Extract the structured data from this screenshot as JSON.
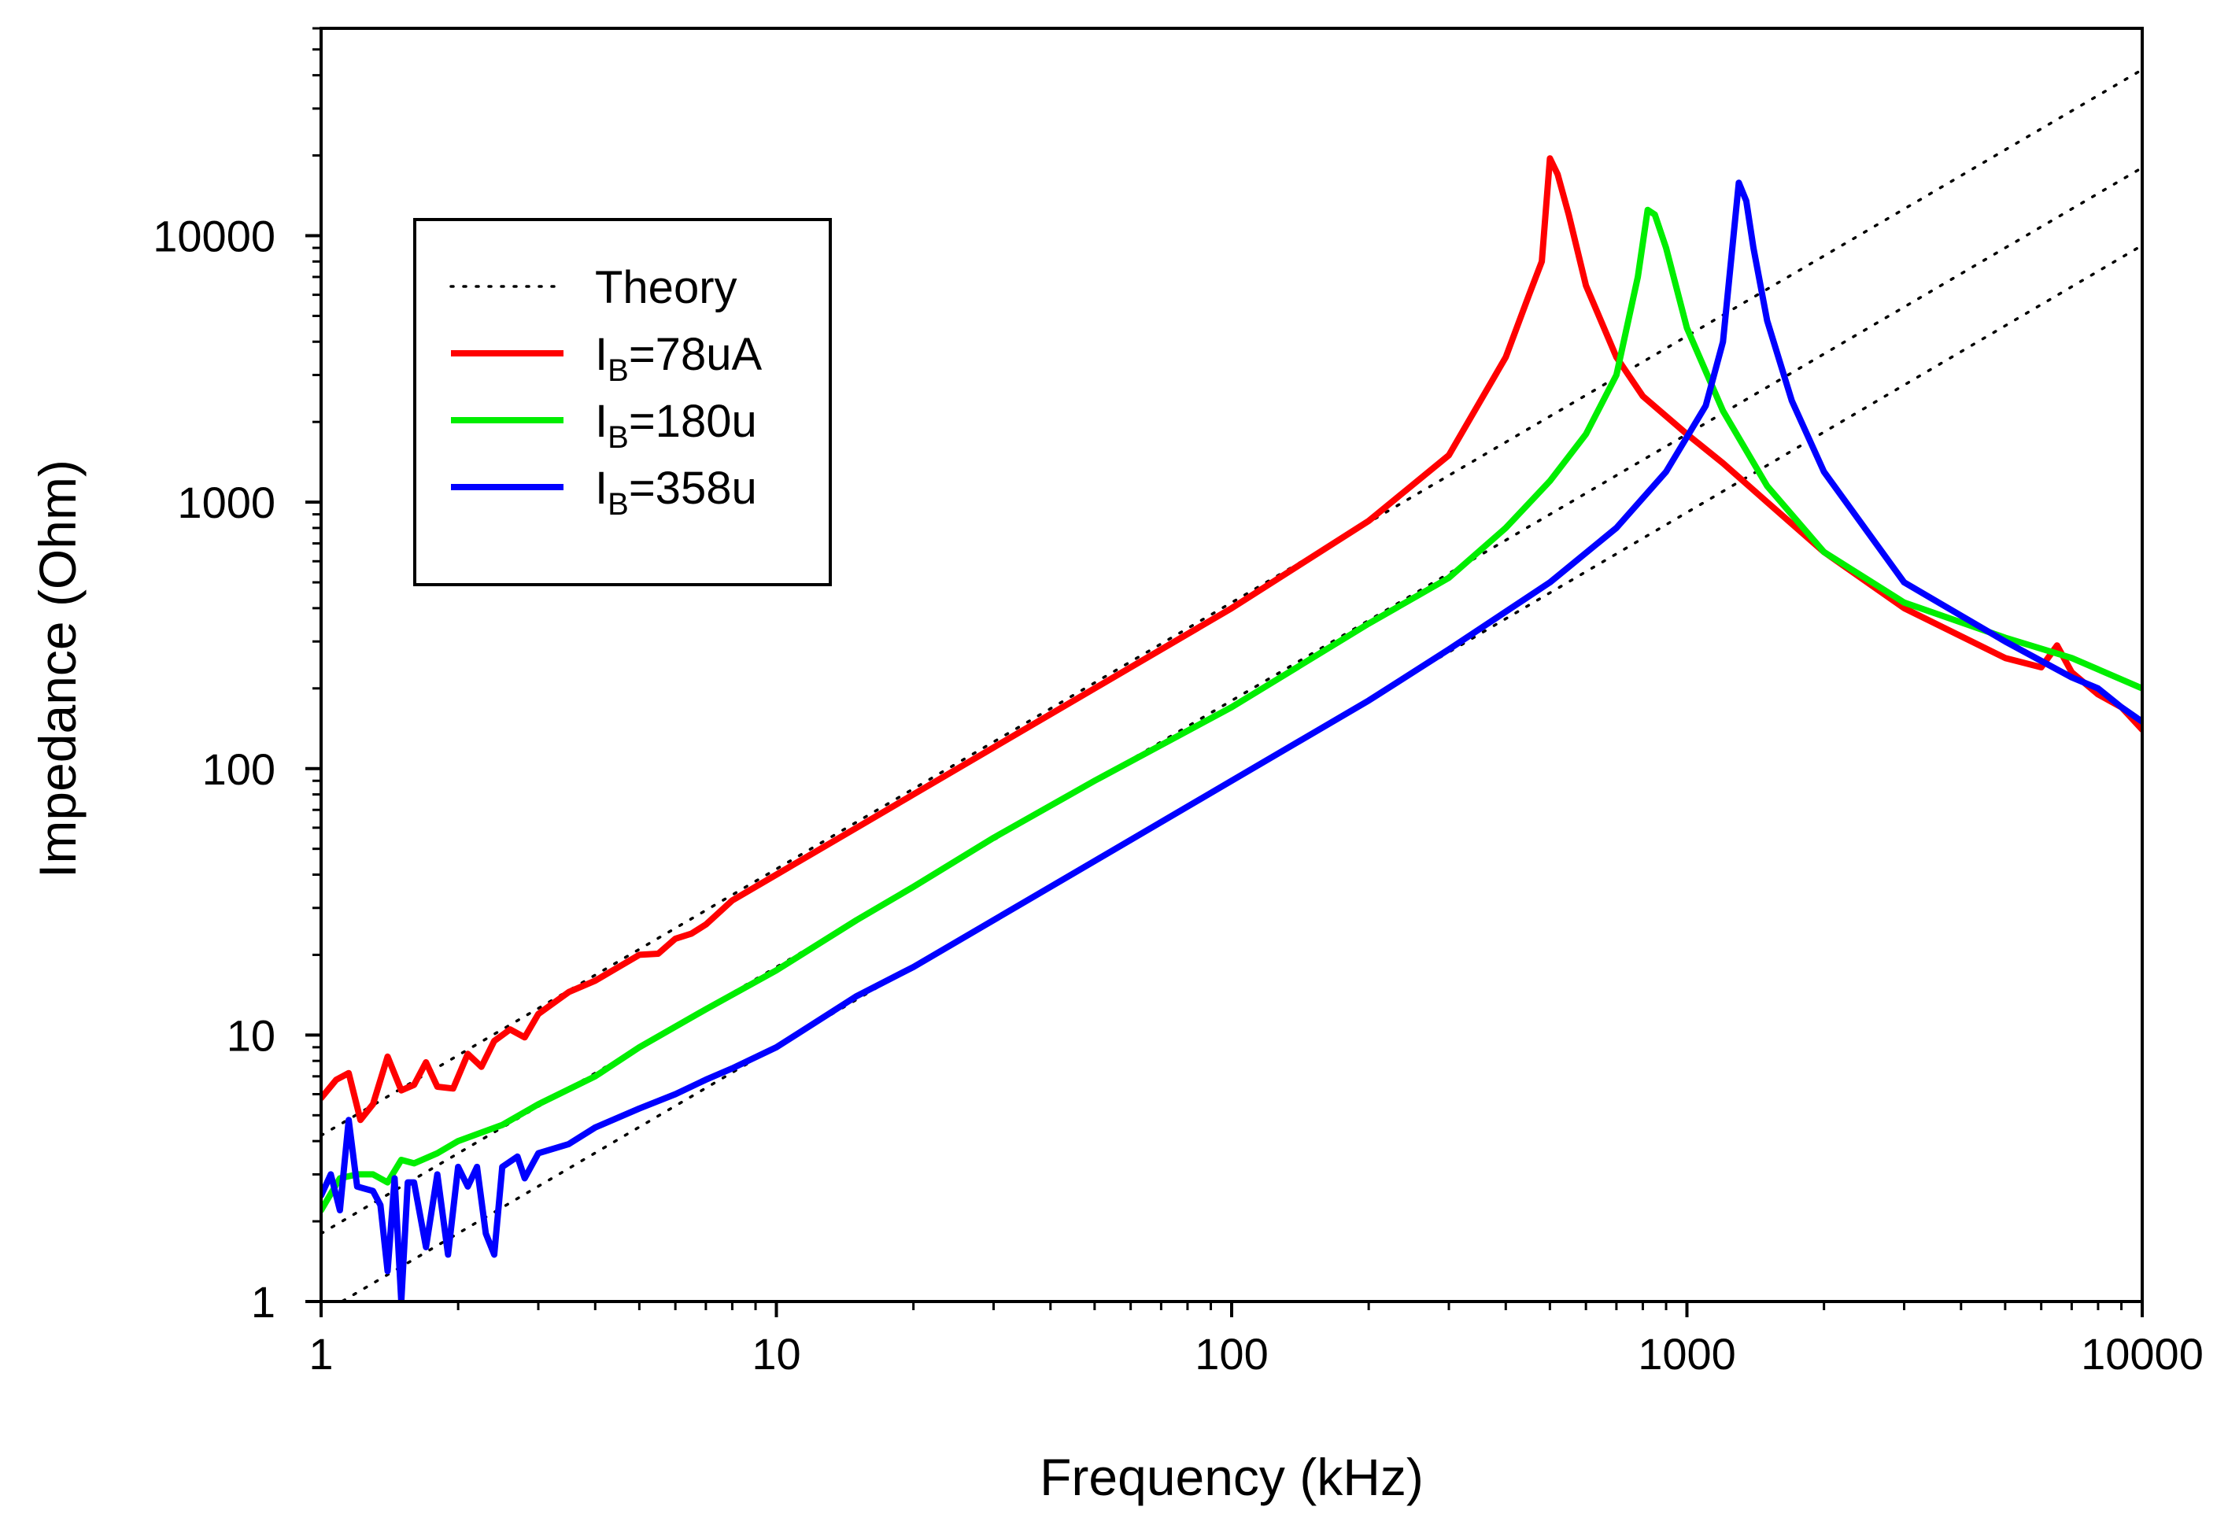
{
  "chart_data": {
    "type": "line",
    "title": "",
    "xlabel": "Frequency (kHz)",
    "ylabel": "Impedance (Ohm)",
    "xscale": "log",
    "yscale": "log",
    "xlim": [
      1,
      10000
    ],
    "ylim": [
      1,
      60000
    ],
    "grid": false,
    "legend_position": "upper-left",
    "x_ticks": [
      {
        "value": 1,
        "label": "1"
      },
      {
        "value": 10,
        "label": "10"
      },
      {
        "value": 100,
        "label": "100"
      },
      {
        "value": 1000,
        "label": "1000"
      },
      {
        "value": 10000,
        "label": "10000"
      }
    ],
    "y_ticks": [
      {
        "value": 1,
        "label": "1"
      },
      {
        "value": 10,
        "label": "10"
      },
      {
        "value": 100,
        "label": "100"
      },
      {
        "value": 1000,
        "label": "1000"
      },
      {
        "value": 10000,
        "label": "10000"
      }
    ],
    "legend": [
      {
        "series": "theory",
        "label_main": "Theory",
        "label_sub": "",
        "label_rest": ""
      },
      {
        "series": "ib78",
        "label_main": "I",
        "label_sub": "B",
        "label_rest": "=78uA"
      },
      {
        "series": "ib180",
        "label_main": "I",
        "label_sub": "B",
        "label_rest": "=180u"
      },
      {
        "series": "ib358",
        "label_main": "I",
        "label_sub": "B",
        "label_rest": "=358u"
      }
    ],
    "series": [
      {
        "id": "theory-1",
        "name": "Theory",
        "color": "#000000",
        "style": "dotted",
        "x": [
          1,
          10000
        ],
        "y": [
          4.2,
          42000
        ]
      },
      {
        "id": "theory-2",
        "name": "Theory",
        "color": "#000000",
        "style": "dotted",
        "x": [
          1,
          10000
        ],
        "y": [
          1.8,
          18000
        ]
      },
      {
        "id": "theory-3",
        "name": "Theory",
        "color": "#000000",
        "style": "dotted",
        "x": [
          1,
          10000
        ],
        "y": [
          0.9,
          9200
        ]
      },
      {
        "id": "ib78",
        "name": "I_B=78uA",
        "color": "#ff0000",
        "style": "solid",
        "x": [
          1,
          1.08,
          1.15,
          1.22,
          1.3,
          1.4,
          1.5,
          1.6,
          1.7,
          1.8,
          1.95,
          2.1,
          2.25,
          2.4,
          2.6,
          2.8,
          3,
          3.5,
          4,
          4.5,
          5,
          5.5,
          6,
          6.5,
          7,
          8,
          10,
          15,
          20,
          30,
          50,
          100,
          200,
          300,
          400,
          450,
          480,
          500,
          520,
          550,
          600,
          700,
          800,
          1000,
          1200,
          1500,
          2000,
          3000,
          5000,
          6000,
          6500,
          7000,
          8000,
          9000,
          10000
        ],
        "y": [
          5.8,
          6.8,
          7.2,
          4.8,
          5.5,
          8.3,
          6.2,
          6.5,
          7.9,
          6.4,
          6.3,
          8.5,
          7.6,
          9.5,
          10.5,
          9.8,
          12,
          14.5,
          16,
          18,
          20,
          20.2,
          23,
          24,
          26,
          32,
          40,
          60,
          80,
          120,
          200,
          400,
          850,
          1500,
          3500,
          6000,
          8000,
          19500,
          17000,
          12000,
          6500,
          3500,
          2500,
          1800,
          1400,
          1000,
          650,
          400,
          260,
          240,
          290,
          230,
          190,
          170,
          140
        ]
      },
      {
        "id": "ib180",
        "name": "I_B=180u",
        "color": "#00ee00",
        "style": "solid",
        "x": [
          1,
          1.1,
          1.2,
          1.3,
          1.4,
          1.5,
          1.6,
          1.8,
          2,
          2.5,
          3,
          4,
          5,
          7,
          10,
          15,
          20,
          30,
          50,
          100,
          200,
          300,
          400,
          500,
          600,
          700,
          780,
          820,
          850,
          900,
          1000,
          1200,
          1500,
          2000,
          3000,
          5000,
          7000,
          10000
        ],
        "y": [
          2.2,
          2.9,
          3.0,
          3.0,
          2.8,
          3.4,
          3.3,
          3.6,
          4.0,
          4.6,
          5.5,
          7.0,
          9.0,
          12.5,
          17.5,
          27,
          36,
          55,
          90,
          170,
          350,
          520,
          800,
          1200,
          1800,
          3000,
          7000,
          12500,
          12000,
          9000,
          4500,
          2200,
          1150,
          650,
          420,
          310,
          260,
          200
        ]
      },
      {
        "id": "ib358",
        "name": "I_B=358u",
        "color": "#0000ff",
        "style": "solid",
        "x": [
          1,
          1.05,
          1.1,
          1.15,
          1.2,
          1.3,
          1.35,
          1.4,
          1.45,
          1.5,
          1.55,
          1.6,
          1.7,
          1.8,
          1.9,
          2,
          2.1,
          2.2,
          2.3,
          2.4,
          2.5,
          2.7,
          2.8,
          3,
          3.5,
          4,
          5,
          6,
          7,
          8,
          10,
          15,
          20,
          30,
          50,
          100,
          200,
          300,
          500,
          700,
          900,
          1100,
          1200,
          1300,
          1350,
          1400,
          1500,
          1700,
          2000,
          3000,
          5000,
          7000,
          8000,
          9000,
          10000
        ],
        "y": [
          2.5,
          3.0,
          2.2,
          4.8,
          2.7,
          2.6,
          2.3,
          1.3,
          2.9,
          1.0,
          2.8,
          2.8,
          1.6,
          3.0,
          1.5,
          3.2,
          2.7,
          3.2,
          1.8,
          1.5,
          3.2,
          3.5,
          2.9,
          3.6,
          3.9,
          4.5,
          5.3,
          6.0,
          6.8,
          7.5,
          9.0,
          14,
          18,
          27,
          45,
          90,
          180,
          280,
          500,
          800,
          1300,
          2300,
          4000,
          15800,
          13500,
          9000,
          4800,
          2400,
          1300,
          500,
          300,
          220,
          200,
          170,
          150
        ]
      }
    ]
  }
}
